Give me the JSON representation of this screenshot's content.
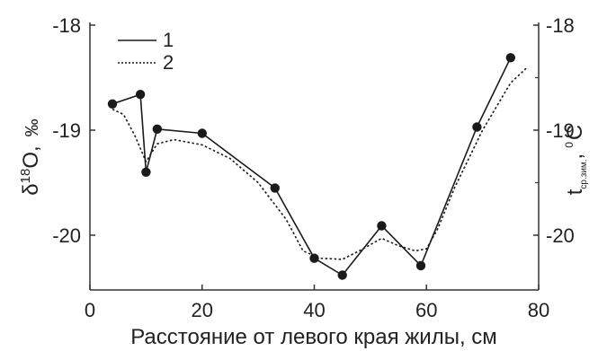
{
  "chart_data": {
    "type": "line",
    "xlabel": "Расстояние от левого края жилы, см",
    "ylabel_left": "δ18O, ‰",
    "ylabel_left_parts": {
      "delta": "δ",
      "superscript": "18",
      "base": "O,",
      "unit": "‰"
    },
    "ylabel_right": "tср.зим., °С",
    "ylabel_right_parts": {
      "t": "t",
      "subscript": "ср.зим.",
      "comma": ",",
      "degree": "0",
      "unit": "С"
    },
    "xlim": [
      0,
      80
    ],
    "ylim": [
      -20.5,
      -18
    ],
    "xticks": [
      0,
      20,
      40,
      60,
      80
    ],
    "yticks_left": [
      -18,
      -19,
      -20
    ],
    "yticks_right": [
      -18,
      -19,
      -20
    ],
    "grid": false,
    "legend_placement": "top-left",
    "series": [
      {
        "name": "1",
        "style": "solid-markers",
        "color": "#1a1a1a",
        "x": [
          4,
          9,
          10,
          12,
          20,
          33,
          40,
          45,
          52,
          59,
          69,
          75
        ],
        "y": [
          -18.75,
          -18.66,
          -19.4,
          -18.99,
          -19.03,
          -19.55,
          -20.22,
          -20.38,
          -19.91,
          -20.29,
          -18.97,
          -18.31
        ]
      },
      {
        "name": "2",
        "style": "dashed",
        "color": "#1a1a1a",
        "x": [
          4,
          6,
          8,
          10,
          12,
          15,
          20,
          25,
          30,
          35,
          38,
          41,
          45,
          48,
          52,
          55,
          58,
          60,
          62,
          65,
          70,
          75,
          78
        ],
        "y": [
          -18.8,
          -18.85,
          -19.05,
          -19.3,
          -19.13,
          -19.09,
          -19.14,
          -19.27,
          -19.5,
          -19.85,
          -20.15,
          -20.22,
          -20.23,
          -20.15,
          -20.03,
          -20.1,
          -20.15,
          -20.13,
          -19.94,
          -19.55,
          -19.0,
          -18.55,
          -18.4
        ]
      }
    ]
  }
}
